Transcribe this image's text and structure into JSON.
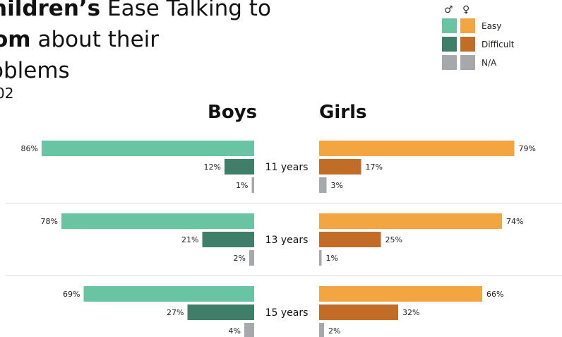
{
  "title": {
    "line1_bold": "hildren’s",
    "line1_rest": " Ease Talking to",
    "line2_bold": "om",
    "line2_rest": " about their",
    "line3": "oblems",
    "line4": "02"
  },
  "legend": {
    "male_symbol": "♂",
    "female_symbol": "♀",
    "items": [
      {
        "label": "Easy",
        "boys_color": "#69c4a4",
        "girls_color": "#f2a541"
      },
      {
        "label": "Difficult",
        "boys_color": "#3f7f6a",
        "girls_color": "#c16d28"
      },
      {
        "label": "N/A",
        "boys_color": "#a6a8ab",
        "girls_color": "#a6a8ab"
      }
    ]
  },
  "columns": {
    "boys": "Boys",
    "girls": "Girls"
  },
  "chart_data": {
    "type": "bar",
    "orientation": "horizontal-butterfly",
    "categories": [
      "11 years",
      "13 years",
      "15 years"
    ],
    "series_names": [
      "Easy",
      "Difficult",
      "N/A"
    ],
    "boys": {
      "Easy": [
        86,
        78,
        69
      ],
      "Difficult": [
        12,
        21,
        27
      ],
      "N/A": [
        1,
        2,
        4
      ]
    },
    "girls": {
      "Easy": [
        79,
        74,
        66
      ],
      "Difficult": [
        17,
        25,
        32
      ],
      "N/A": [
        3,
        1,
        2
      ]
    },
    "value_suffix": "%",
    "xlim": [
      0,
      100
    ],
    "colors": {
      "boys": [
        "#69c4a4",
        "#3f7f6a",
        "#a6a8ab"
      ],
      "girls": [
        "#f2a541",
        "#c16d28",
        "#a6a8ab"
      ],
      "separator": "#dddddd"
    }
  }
}
